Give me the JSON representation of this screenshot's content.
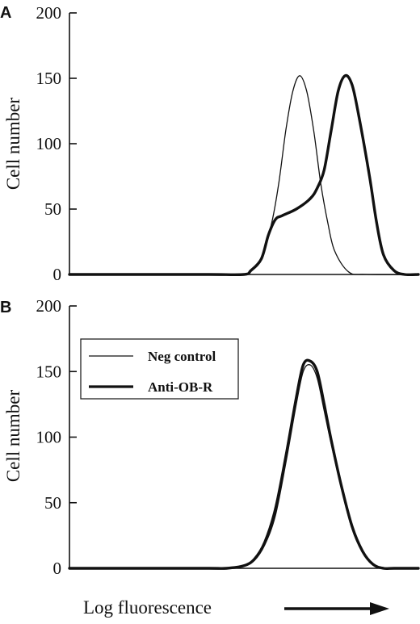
{
  "figure": {
    "xlabel": "Log fluorescence",
    "xlabel_arrow": "right-arrow-icon"
  },
  "chart_data": [
    {
      "panel": "A",
      "type": "line",
      "ylabel": "Cell number",
      "ylim": [
        0,
        200
      ],
      "yticks": [
        0,
        50,
        100,
        150,
        200
      ],
      "xlabel": "",
      "x_tick_labels": [],
      "grid": false,
      "legend": null,
      "series": [
        {
          "style": "thin",
          "x": [
            0,
            0.2,
            0.4,
            0.5,
            0.52,
            0.55,
            0.58,
            0.6,
            0.62,
            0.64,
            0.66,
            0.68,
            0.7,
            0.72,
            0.74,
            0.76,
            0.8,
            0.85,
            1.0
          ],
          "values": [
            0,
            0,
            0,
            0,
            3,
            12,
            40,
            70,
            110,
            140,
            152,
            140,
            110,
            70,
            40,
            18,
            2,
            0,
            0
          ]
        },
        {
          "style": "thick",
          "x": [
            0,
            0.2,
            0.4,
            0.5,
            0.52,
            0.55,
            0.57,
            0.59,
            0.61,
            0.65,
            0.69,
            0.71,
            0.73,
            0.75,
            0.77,
            0.79,
            0.81,
            0.83,
            0.86,
            0.88,
            0.9,
            0.93,
            0.96,
            1.0
          ],
          "values": [
            0,
            0,
            0,
            0,
            3,
            12,
            30,
            42,
            45,
            50,
            58,
            66,
            80,
            110,
            140,
            152,
            145,
            120,
            75,
            40,
            15,
            3,
            0,
            0
          ]
        }
      ]
    },
    {
      "panel": "B",
      "type": "line",
      "ylabel": "Cell number",
      "ylim": [
        0,
        200
      ],
      "yticks": [
        0,
        50,
        100,
        150,
        200
      ],
      "xlabel": "",
      "x_tick_labels": [],
      "grid": false,
      "legend": "top-left",
      "series": [
        {
          "name": "Neg control",
          "style": "thin",
          "x": [
            0,
            0.2,
            0.4,
            0.45,
            0.5,
            0.53,
            0.56,
            0.59,
            0.62,
            0.65,
            0.67,
            0.69,
            0.71,
            0.73,
            0.75,
            0.78,
            0.81,
            0.84,
            0.87,
            0.9,
            0.93,
            1.0
          ],
          "values": [
            0,
            0,
            0,
            0,
            2,
            6,
            18,
            40,
            80,
            125,
            150,
            155,
            145,
            120,
            95,
            60,
            30,
            12,
            3,
            0,
            0,
            0
          ]
        },
        {
          "name": "Anti-OB-R",
          "style": "thick",
          "x": [
            0,
            0.2,
            0.4,
            0.45,
            0.5,
            0.53,
            0.56,
            0.59,
            0.62,
            0.65,
            0.67,
            0.69,
            0.71,
            0.73,
            0.75,
            0.78,
            0.81,
            0.84,
            0.87,
            0.9,
            0.93,
            1.0
          ],
          "values": [
            0,
            0,
            0,
            0,
            2,
            7,
            20,
            45,
            85,
            130,
            155,
            158,
            150,
            125,
            98,
            62,
            32,
            13,
            3,
            0,
            0,
            0
          ]
        }
      ]
    }
  ]
}
